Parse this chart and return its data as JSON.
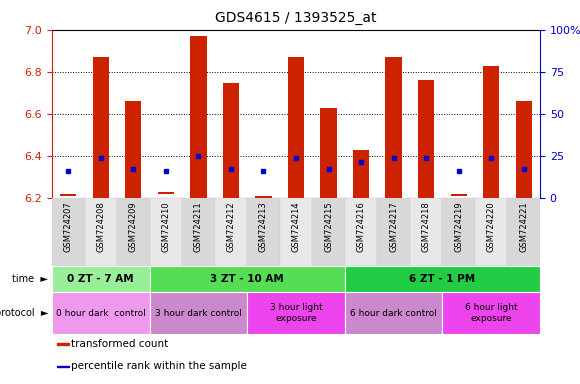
{
  "title": "GDS4615 / 1393525_at",
  "samples": [
    "GSM724207",
    "GSM724208",
    "GSM724209",
    "GSM724210",
    "GSM724211",
    "GSM724212",
    "GSM724213",
    "GSM724214",
    "GSM724215",
    "GSM724216",
    "GSM724217",
    "GSM724218",
    "GSM724219",
    "GSM724220",
    "GSM724221"
  ],
  "bar_bottoms": [
    6.21,
    6.2,
    6.2,
    6.22,
    6.2,
    6.2,
    6.2,
    6.2,
    6.2,
    6.2,
    6.2,
    6.2,
    6.21,
    6.2,
    6.2
  ],
  "bar_tops": [
    6.22,
    6.87,
    6.66,
    6.23,
    6.97,
    6.75,
    6.21,
    6.87,
    6.63,
    6.43,
    6.87,
    6.76,
    6.22,
    6.83,
    6.66
  ],
  "blue_y": [
    6.33,
    6.39,
    6.34,
    6.33,
    6.4,
    6.34,
    6.33,
    6.39,
    6.34,
    6.37,
    6.39,
    6.39,
    6.33,
    6.39,
    6.34
  ],
  "ylim_left": [
    6.2,
    7.0
  ],
  "ylim_right": [
    0,
    100
  ],
  "yticks_left": [
    6.2,
    6.4,
    6.6,
    6.8,
    7.0
  ],
  "yticks_right": [
    0,
    25,
    50,
    75,
    100
  ],
  "bar_color": "#cc2200",
  "blue_color": "#0000cc",
  "time_groups": [
    {
      "label": "0 ZT - 7 AM",
      "start": 0,
      "end": 3,
      "color": "#99ee99"
    },
    {
      "label": "3 ZT - 10 AM",
      "start": 3,
      "end": 9,
      "color": "#55dd55"
    },
    {
      "label": "6 ZT - 1 PM",
      "start": 9,
      "end": 15,
      "color": "#22cc44"
    }
  ],
  "protocol_groups": [
    {
      "label": "0 hour dark  control",
      "start": 0,
      "end": 3,
      "color": "#ee99ee"
    },
    {
      "label": "3 hour dark control",
      "start": 3,
      "end": 6,
      "color": "#cc88cc"
    },
    {
      "label": "3 hour light\nexposure",
      "start": 6,
      "end": 9,
      "color": "#ee44ee"
    },
    {
      "label": "6 hour dark control",
      "start": 9,
      "end": 12,
      "color": "#cc88cc"
    },
    {
      "label": "6 hour light\nexposure",
      "start": 12,
      "end": 15,
      "color": "#ee44ee"
    }
  ],
  "legend_items": [
    {
      "label": "transformed count",
      "color": "#cc2200"
    },
    {
      "label": "percentile rank within the sample",
      "color": "#0000cc"
    }
  ],
  "left_tick_color": "#cc2200",
  "right_tick_color": "#0000cc",
  "time_label": "time",
  "protocol_label": "protocol"
}
